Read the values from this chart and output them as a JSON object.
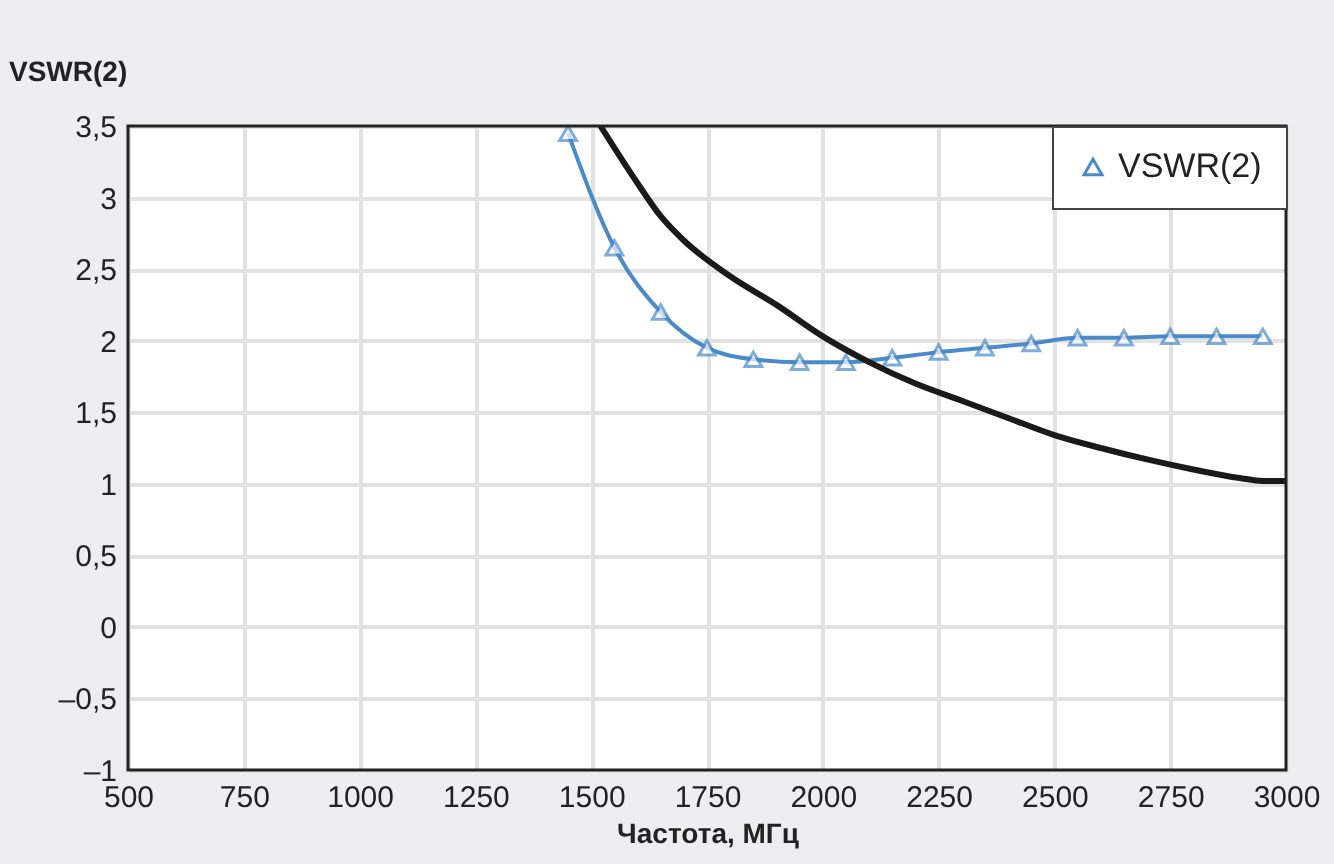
{
  "chart_data": {
    "type": "line",
    "ylabel": "VSWR(2)",
    "xlabel": "Частота, МГц",
    "xlim": [
      500,
      3000
    ],
    "xticks": [
      500,
      750,
      1000,
      1250,
      1500,
      1750,
      2000,
      2250,
      2500,
      2750,
      3000
    ],
    "ylim": [
      -1,
      3.5
    ],
    "yticks": [
      {
        "value": -1,
        "label": "–1"
      },
      {
        "value": -0.5,
        "label": "–0,5"
      },
      0,
      {
        "value": 0.5,
        "label": "0,5"
      },
      1,
      {
        "value": 1.5,
        "label": "1,5"
      },
      2,
      {
        "value": 2.5,
        "label": "2,5"
      },
      3,
      {
        "value": 3.5,
        "label": "3,5"
      }
    ],
    "grid": true,
    "legend": "top right",
    "line_style": "solid",
    "series": [
      {
        "name": "VSWR(2)",
        "color": "#4a8ac8",
        "marker": "triangle",
        "x": [
          1450,
          1550,
          1650,
          1750,
          1850,
          1950,
          2050,
          2150,
          2250,
          2350,
          2450,
          2550,
          2650,
          2750,
          2850,
          2950
        ],
        "values": [
          3.45,
          2.65,
          2.2,
          1.95,
          1.87,
          1.85,
          1.85,
          1.88,
          1.92,
          1.95,
          1.98,
          2.02,
          2.02,
          2.03,
          2.03,
          2.03
        ]
      },
      {
        "color": "#1a1a1a",
        "marker": "none",
        "x": [
          1520,
          1600,
          1650,
          1700,
          1800,
          1900,
          2000,
          2100,
          2200,
          2300,
          2400,
          2500,
          2600,
          2700,
          2800,
          2900,
          2950,
          3000
        ],
        "values": [
          3.5,
          3.1,
          2.87,
          2.7,
          2.45,
          2.25,
          2.03,
          1.85,
          1.7,
          1.58,
          1.46,
          1.34,
          1.25,
          1.17,
          1.1,
          1.04,
          1.02,
          1.02
        ]
      }
    ]
  }
}
